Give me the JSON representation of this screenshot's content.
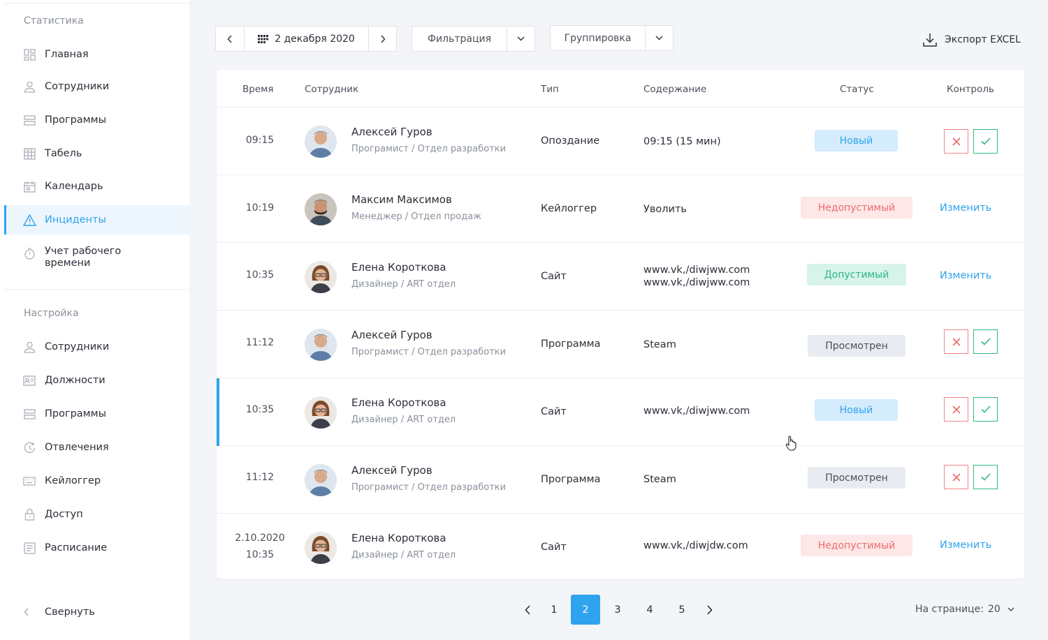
{
  "sidebar": {
    "stats_title": "Статистика",
    "stats_items": [
      {
        "label": "Главная",
        "icon": "dashboard-icon"
      },
      {
        "label": "Сотрудники",
        "icon": "user-icon"
      },
      {
        "label": "Программы",
        "icon": "programs-icon"
      },
      {
        "label": "Табель",
        "icon": "table-icon"
      },
      {
        "label": "Календарь",
        "icon": "calendar-icon"
      },
      {
        "label": "Инциденты",
        "icon": "warning-icon",
        "active": true
      },
      {
        "label": "Учет рабочего времени",
        "icon": "stopwatch-icon"
      }
    ],
    "settings_title": "Настройка",
    "settings_items": [
      {
        "label": "Сотрудники",
        "icon": "user-icon"
      },
      {
        "label": "Должности",
        "icon": "id-card-icon"
      },
      {
        "label": "Программы",
        "icon": "programs-icon"
      },
      {
        "label": "Отвлечения",
        "icon": "distraction-icon"
      },
      {
        "label": "Кейлоггер",
        "icon": "keyboard-icon"
      },
      {
        "label": "Доступ",
        "icon": "lock-icon"
      },
      {
        "label": "Расписание",
        "icon": "schedule-icon"
      }
    ],
    "collapse_label": "Свернуть"
  },
  "toolbar": {
    "date_label": "2 декабря 2020",
    "filter_label": "Фильтрация",
    "group_label": "Группировка",
    "export_label": "Экспорт EXCEL"
  },
  "table": {
    "headers": {
      "time": "Время",
      "employee": "Сотрудник",
      "type": "Тип",
      "content": "Содержание",
      "status": "Статус",
      "control": "Контроль"
    },
    "rows": [
      {
        "time": "09:15",
        "name": "Алексей Гуров",
        "position": "Програмист / Отдел разработки",
        "type": "Опоздание",
        "content": "09:15 (15 мин)",
        "status": "Новый"
      },
      {
        "time": "10:19",
        "name": "Максим Максимов",
        "position": "Менеджер / Отдел продаж",
        "type": "Кейлоггер",
        "content": "Уволить",
        "status": "Недопустимый",
        "action": "Изменить"
      },
      {
        "time": "10:35",
        "name": "Елена Короткова",
        "position": "Дизайнер / ART отдел",
        "type": "Сайт",
        "content": "www.vk,/diwjww.com",
        "content2": "www.vk,/diwjww.com",
        "status": "Допустимый",
        "action": "Изменить"
      },
      {
        "time": "11:12",
        "name": "Алексей Гуров",
        "position": "Програмист / Отдел разработки",
        "type": "Программа",
        "content": "Steam",
        "status": "Просмотрен"
      },
      {
        "time": "10:35",
        "name": "Елена Короткова",
        "position": "Дизайнер / ART отдел",
        "type": "Сайт",
        "content": "www.vk,/diwjww.com",
        "status": "Новый"
      },
      {
        "time": "11:12",
        "name": "Алексей Гуров",
        "position": "Програмист / Отдел разработки",
        "type": "Программа",
        "content": "Steam",
        "status": "Просмотрен"
      },
      {
        "time": "2.10.2020",
        "time2": "10:35",
        "name": "Елена Короткова",
        "position": "Дизайнер / ART отдел",
        "type": "Сайт",
        "content": "www.vk,/diwjdw.com",
        "status": "Недопустимый",
        "action": "Изменить"
      }
    ]
  },
  "pagination": {
    "pages": [
      "1",
      "2",
      "3",
      "4",
      "5"
    ],
    "current": "2",
    "per_page_label": "На странице:",
    "per_page_value": "20"
  },
  "colors": {
    "accent": "#2fa3ee",
    "danger": "#ec6b6b",
    "success": "#2db88a"
  }
}
